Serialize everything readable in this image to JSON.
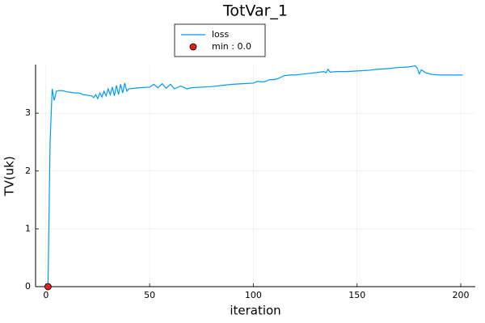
{
  "chart_data": {
    "type": "line",
    "title": "TotVar_1",
    "x_label": "iteration",
    "y_label": "TV(uk)",
    "xlim": [
      -5,
      207
    ],
    "xticks": [
      0,
      50,
      100,
      150,
      200
    ],
    "ylim": [
      0,
      3.84
    ],
    "yticks": [
      0,
      1,
      2,
      3
    ],
    "grid": true,
    "legend": "top",
    "series": [
      {
        "name": "loss",
        "type": "line",
        "color": "#009af9",
        "x": [
          1,
          2,
          3,
          4,
          5,
          6,
          8,
          10,
          12,
          14,
          16,
          18,
          20,
          22,
          23,
          24,
          25,
          26,
          27,
          28,
          29,
          30,
          31,
          32,
          33,
          34,
          35,
          36,
          37,
          38,
          39,
          40,
          45,
          50,
          52,
          54,
          56,
          58,
          60,
          62,
          65,
          68,
          70,
          75,
          80,
          85,
          90,
          95,
          100,
          102,
          105,
          108,
          110,
          112,
          115,
          118,
          120,
          125,
          130,
          134,
          135,
          136,
          137,
          140,
          145,
          150,
          155,
          160,
          165,
          170,
          175,
          178,
          179,
          180,
          181,
          183,
          186,
          190,
          195,
          201
        ],
        "values": [
          0,
          2.5,
          3.42,
          3.22,
          3.38,
          3.39,
          3.39,
          3.37,
          3.36,
          3.35,
          3.35,
          3.32,
          3.31,
          3.3,
          3.27,
          3.32,
          3.25,
          3.35,
          3.28,
          3.38,
          3.3,
          3.42,
          3.32,
          3.45,
          3.3,
          3.48,
          3.32,
          3.5,
          3.35,
          3.52,
          3.38,
          3.42,
          3.44,
          3.45,
          3.5,
          3.44,
          3.51,
          3.43,
          3.5,
          3.42,
          3.47,
          3.42,
          3.44,
          3.45,
          3.46,
          3.48,
          3.5,
          3.51,
          3.52,
          3.55,
          3.54,
          3.58,
          3.58,
          3.6,
          3.65,
          3.66,
          3.66,
          3.68,
          3.7,
          3.72,
          3.7,
          3.76,
          3.71,
          3.72,
          3.72,
          3.73,
          3.74,
          3.76,
          3.77,
          3.79,
          3.8,
          3.82,
          3.78,
          3.68,
          3.75,
          3.7,
          3.67,
          3.66,
          3.66,
          3.66
        ]
      },
      {
        "name": "min : 0.0",
        "type": "scatter",
        "color": "#e0201b",
        "x": [
          1
        ],
        "values": [
          0
        ]
      }
    ]
  }
}
